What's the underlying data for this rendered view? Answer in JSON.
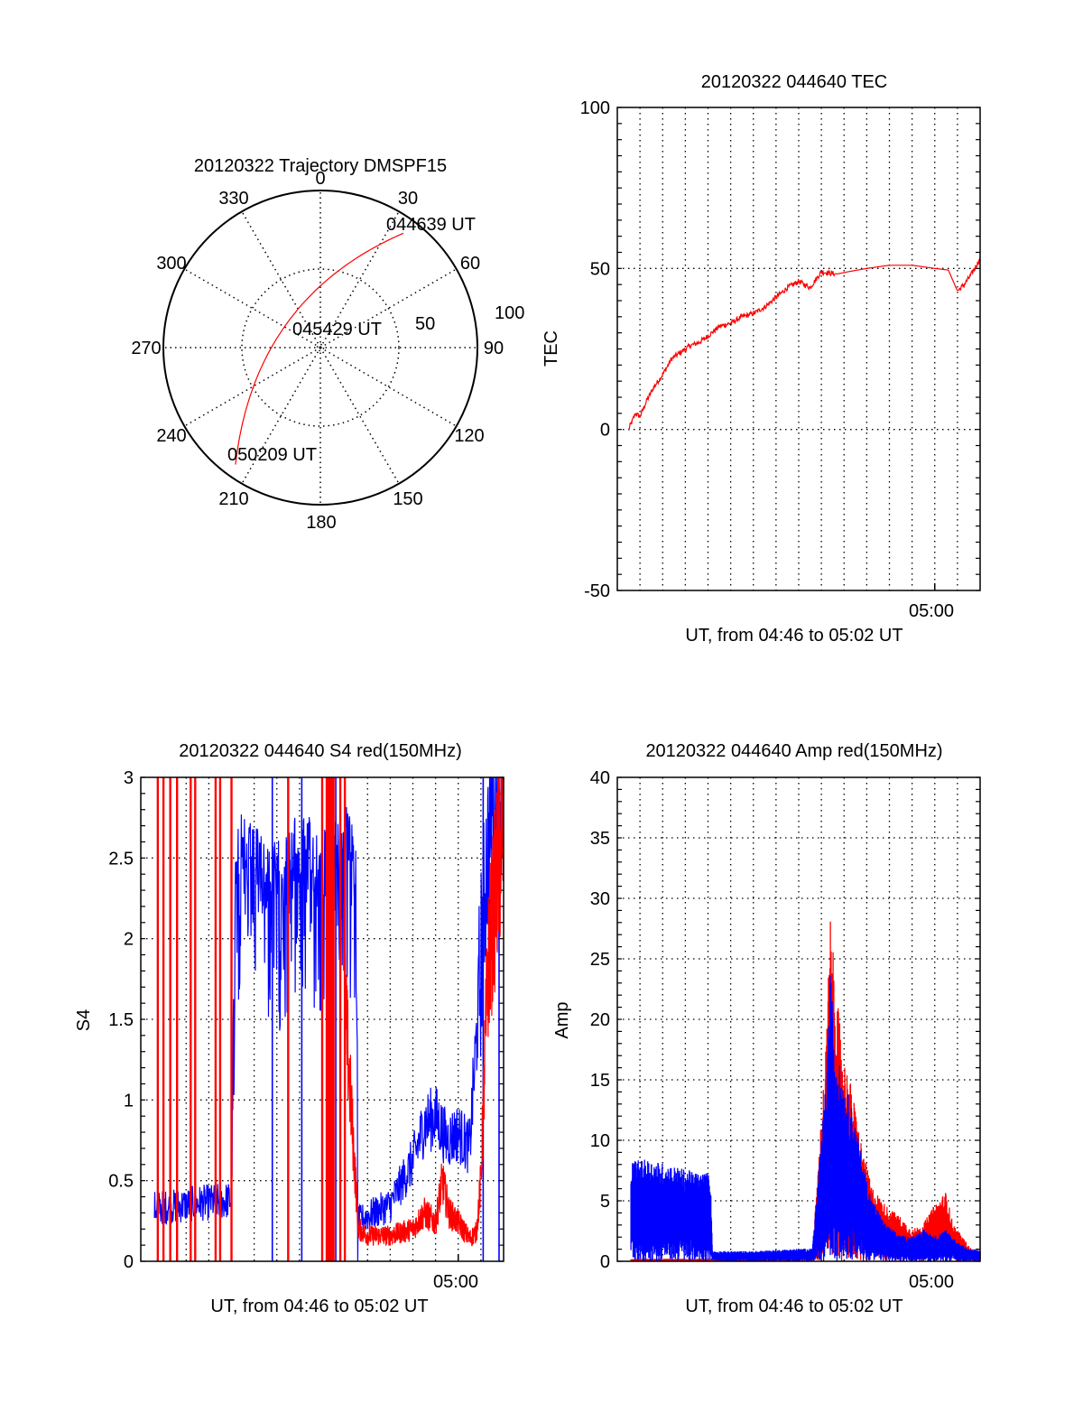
{
  "colors": {
    "red": "#ff0000",
    "blue": "#0000ff",
    "axis": "#000000"
  },
  "chart_data": [
    {
      "type": "polar",
      "title": "20120322 Trajectory DMSPF15",
      "azimuth_labels": [
        "0",
        "30",
        "60",
        "90",
        "120",
        "150",
        "180",
        "210",
        "240",
        "270",
        "300",
        "330"
      ],
      "radial_labels": [
        "50",
        "100"
      ],
      "radial_max": 100,
      "trajectory": {
        "color": "red",
        "points": [
          {
            "az": 36,
            "r": 90
          },
          {
            "az": 30,
            "r": 60
          },
          {
            "az": 22,
            "r": 45
          },
          {
            "az": 0,
            "r": 35
          },
          {
            "az": 330,
            "r": 29
          },
          {
            "az": 300,
            "r": 32
          },
          {
            "az": 280,
            "r": 38
          },
          {
            "az": 255,
            "r": 50
          },
          {
            "az": 230,
            "r": 72
          },
          {
            "az": 216,
            "r": 92
          }
        ],
        "annotations": [
          {
            "label": "044639 UT",
            "at": "start"
          },
          {
            "label": "045429 UT",
            "at": "middle"
          },
          {
            "label": "050209 UT",
            "at": "end"
          }
        ]
      }
    },
    {
      "type": "line",
      "title": "20120322 044640 TEC",
      "xlabel": "UT, from 04:46 to 05:02 UT",
      "ylabel": "TEC",
      "x_tick_label": "05:00",
      "xlim_minutes": [
        0,
        16
      ],
      "ylim": [
        -50,
        100
      ],
      "y_ticks": [
        "100",
        "50",
        "0",
        "-50"
      ],
      "series": [
        {
          "name": "TEC",
          "color": "red",
          "x_minutes": [
            0.5,
            0.8,
            1.0,
            1.3,
            1.6,
            2.0,
            2.4,
            2.8,
            3.2,
            3.6,
            4.0,
            4.5,
            5.0,
            5.5,
            6.0,
            6.5,
            7.0,
            7.5,
            8.0,
            8.5,
            9.0,
            9.4,
            9.7,
            10.2,
            11.0,
            12.0,
            13.0,
            14.0,
            14.6,
            15.0,
            15.3,
            15.6,
            16.0
          ],
          "values": [
            0,
            5,
            4,
            9,
            13,
            17,
            22,
            24,
            26,
            27,
            29,
            32,
            33,
            35,
            36,
            38,
            41,
            44,
            46,
            44,
            49,
            48.5,
            48.3,
            49,
            50,
            51,
            51,
            50,
            49.5,
            43,
            45,
            48,
            53
          ]
        }
      ]
    },
    {
      "type": "line",
      "title": "20120322 044640 S4 red(150MHz)",
      "xlabel": "UT, from 04:46 to 05:02 UT",
      "ylabel": "S4",
      "x_tick_label": "05:00",
      "xlim_minutes": [
        0,
        16
      ],
      "ylim": [
        0,
        3
      ],
      "y_ticks": [
        "3",
        "2.5",
        "2",
        "1.5",
        "1",
        "0.5",
        "0"
      ],
      "series": [
        {
          "name": "S4 blue",
          "color": "blue",
          "x_minutes": [
            0.6,
            1.5,
            2.5,
            3.5,
            4.0,
            4.2,
            5.0,
            6.0,
            7.0,
            8.0,
            9.0,
            9.5,
            9.6,
            10.0,
            11.0,
            12.0,
            12.5,
            13.0,
            13.5,
            14.0,
            14.5,
            14.9,
            15.2,
            15.5,
            16.0
          ],
          "values": [
            0.33,
            0.34,
            0.36,
            0.37,
            0.38,
            2.8,
            2.7,
            2.6,
            2.8,
            2.7,
            2.9,
            2.6,
            0.25,
            0.28,
            0.35,
            0.62,
            0.85,
            0.9,
            0.75,
            0.8,
            0.7,
            1.6,
            2.4,
            2.8,
            3.0
          ]
        },
        {
          "name": "S4 red",
          "color": "red",
          "x_minutes": [
            9.0,
            9.6,
            10.0,
            11.0,
            12.0,
            12.5,
            13.0,
            13.3,
            13.6,
            14.0,
            14.5,
            14.8,
            15.0,
            15.3,
            16.0
          ],
          "values": [
            1.6,
            0.2,
            0.16,
            0.16,
            0.2,
            0.3,
            0.24,
            0.5,
            0.3,
            0.24,
            0.14,
            0.18,
            0.5,
            1.8,
            2.8
          ]
        },
        {
          "name": "S4 red spikes",
          "color": "red",
          "x_minutes": [
            0.75,
            1.0,
            1.3,
            1.6,
            2.2,
            2.4,
            3.3,
            3.5,
            4.0,
            6.5,
            8.0,
            8.2,
            8.4,
            8.8,
            9.0
          ],
          "values": [
            3,
            3,
            3,
            3,
            3,
            3,
            3,
            3,
            3,
            3,
            3,
            3,
            3,
            3,
            3
          ]
        },
        {
          "name": "S4 blue dropouts",
          "color": "blue",
          "x_minutes": [
            5.8,
            7.1,
            8.6,
            15.1,
            15.8
          ],
          "values": [
            0,
            0,
            0,
            0,
            0
          ]
        }
      ]
    },
    {
      "type": "line",
      "title": "20120322 044640 Amp red(150MHz)",
      "xlabel": "UT, from 04:46 to 05:02 UT",
      "ylabel": "Amp",
      "x_tick_label": "05:00",
      "xlim_minutes": [
        0,
        16
      ],
      "ylim": [
        0,
        40
      ],
      "y_ticks": [
        "40",
        "35",
        "30",
        "25",
        "20",
        "15",
        "10",
        "5",
        "0"
      ],
      "series": [
        {
          "name": "Amp red",
          "color": "red",
          "x_minutes": [
            0.6,
            4.1,
            4.2,
            8.6,
            9.2,
            9.4,
            9.6,
            10.0,
            10.3,
            10.8,
            11.2,
            11.8,
            12.5,
            13.0,
            13.5,
            14.0,
            14.5,
            14.8,
            15.2,
            15.6,
            16.0
          ],
          "values": [
            0.2,
            0.2,
            0.3,
            0.5,
            17,
            27.5,
            22,
            16,
            14,
            9,
            6,
            4.5,
            3.5,
            2.5,
            3,
            4.5,
            5.5,
            3,
            2,
            1,
            0.8
          ]
        },
        {
          "name": "Amp blue",
          "color": "blue",
          "x_minutes": [
            0.6,
            1.5,
            2.5,
            3.5,
            4.1,
            4.2,
            6.0,
            8.0,
            8.6,
            9.2,
            9.4,
            9.6,
            10.0,
            10.3,
            10.8,
            11.2,
            11.8,
            12.5,
            13.0,
            13.5,
            14.0,
            14.5,
            15.0,
            15.5,
            16.0
          ],
          "values": [
            8,
            8,
            7.5,
            7,
            7,
            0.8,
            0.8,
            1,
            1,
            14,
            23,
            17,
            14,
            12.5,
            8,
            5,
            3,
            2,
            2,
            2.5,
            2,
            2.5,
            1.5,
            1,
            0.9
          ]
        }
      ]
    }
  ]
}
